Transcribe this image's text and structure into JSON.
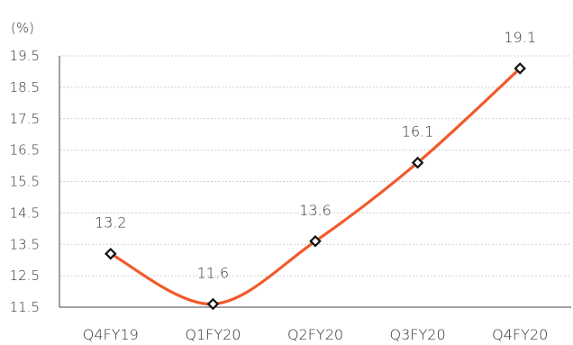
{
  "chart_data": {
    "type": "line",
    "unit_label": "(%)",
    "categories": [
      "Q4FY19",
      "Q1FY20",
      "Q2FY20",
      "Q3FY20",
      "Q4FY20"
    ],
    "series": [
      {
        "values": [
          13.2,
          11.6,
          13.6,
          16.1,
          19.1
        ],
        "color": "#f15a2b",
        "marker_color": "#111111"
      }
    ],
    "data_labels": [
      "13.2",
      "11.6",
      "13.6",
      "16.1",
      "19.1"
    ],
    "y_ticks": [
      "11.5",
      "12.5",
      "13.5",
      "14.5",
      "15.5",
      "16.5",
      "17.5",
      "18.5",
      "19.5"
    ],
    "ylim": [
      11.5,
      19.5
    ],
    "grid": true,
    "legend": "none",
    "smooth": true
  }
}
